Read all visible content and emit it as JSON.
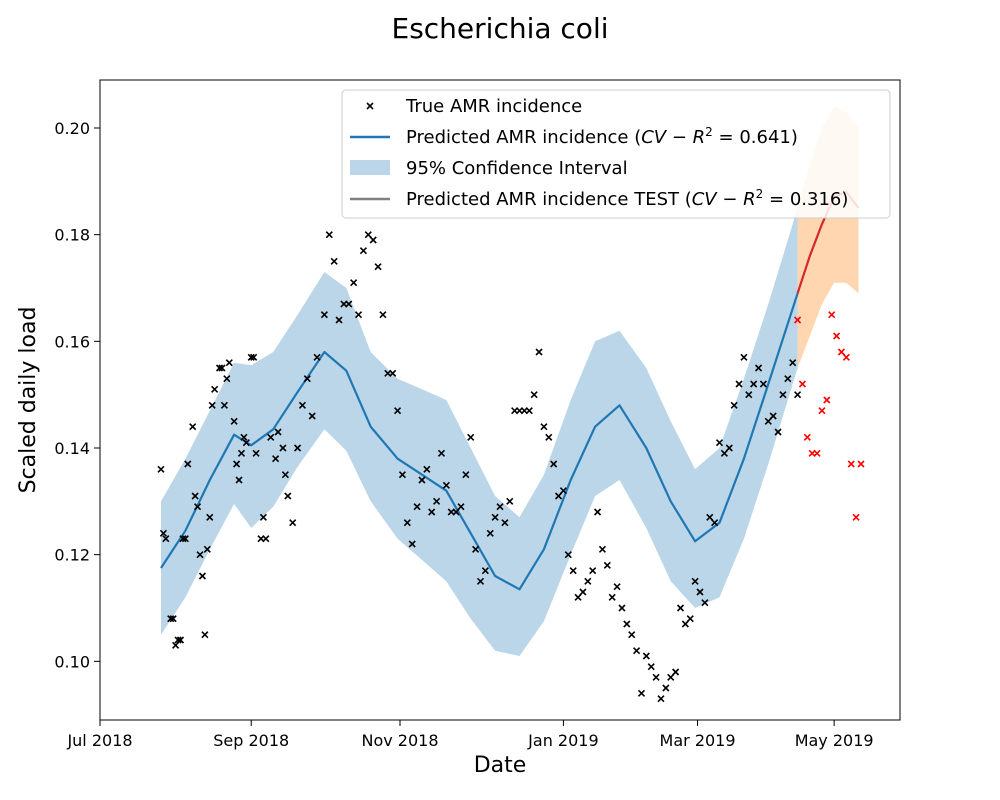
{
  "chart_data": {
    "type": "scatter",
    "title": "Escherichia coli",
    "xlabel": "Date",
    "ylabel": "Scaled daily load",
    "xlim": [
      "2018-07-01",
      "2019-05-25"
    ],
    "ylim": [
      0.089,
      0.209
    ],
    "x_ticks": [
      {
        "date": "2018-07-01",
        "label": "Jul 2018"
      },
      {
        "date": "2018-09-01",
        "label": "Sep 2018"
      },
      {
        "date": "2018-11-01",
        "label": "Nov 2018"
      },
      {
        "date": "2019-01-07",
        "label": "Jan 2019"
      },
      {
        "date": "2019-03-03",
        "label": "Mar 2019"
      },
      {
        "date": "2019-04-28",
        "label": "May 2019"
      }
    ],
    "y_ticks": [
      {
        "value": 0.1,
        "label": "0.10"
      },
      {
        "value": 0.12,
        "label": "0.12"
      },
      {
        "value": 0.14,
        "label": "0.14"
      },
      {
        "value": 0.16,
        "label": "0.16"
      },
      {
        "value": 0.18,
        "label": "0.18"
      },
      {
        "value": 0.2,
        "label": "0.20"
      }
    ],
    "grid": false,
    "legend_position": "upper-right",
    "colors": {
      "true_points": "#000000",
      "test_points": "#ff0000",
      "predicted_line": "#1f77b4",
      "ci_fill": "#1f77b4",
      "test_line": "#d62728",
      "test_ci_fill": "#ffa54d",
      "legend_test_line": "#808080"
    },
    "legend": [
      {
        "key": "true",
        "text": "True AMR incidence",
        "marker": "x"
      },
      {
        "key": "pred",
        "text": "Predicted AMR incidence (",
        "math": "CV − R",
        "sup": "2",
        "tail": " = 0.641)",
        "marker": "line"
      },
      {
        "key": "ci",
        "text": "95% Confidence Interval",
        "marker": "patch"
      },
      {
        "key": "test",
        "text": "Predicted AMR incidence TEST (",
        "math": "CV − R",
        "sup": "2",
        "tail": " = 0.316)",
        "marker": "line-gray"
      }
    ],
    "series": [
      {
        "name": "True AMR incidence",
        "kind": "scatter",
        "x": [
          "2018-07-26",
          "2018-07-27",
          "2018-07-28",
          "2018-07-30",
          "2018-07-31",
          "2018-08-01",
          "2018-08-02",
          "2018-08-03",
          "2018-08-04",
          "2018-08-05",
          "2018-08-06",
          "2018-08-08",
          "2018-08-09",
          "2018-08-10",
          "2018-08-11",
          "2018-08-12",
          "2018-08-13",
          "2018-08-14",
          "2018-08-15",
          "2018-08-16",
          "2018-08-17",
          "2018-08-19",
          "2018-08-20",
          "2018-08-21",
          "2018-08-22",
          "2018-08-23",
          "2018-08-25",
          "2018-08-26",
          "2018-08-27",
          "2018-08-28",
          "2018-08-29",
          "2018-08-30",
          "2018-09-01",
          "2018-09-02",
          "2018-09-03",
          "2018-09-05",
          "2018-09-06",
          "2018-09-07",
          "2018-09-09",
          "2018-09-11",
          "2018-09-12",
          "2018-09-14",
          "2018-09-15",
          "2018-09-16",
          "2018-09-18",
          "2018-09-20",
          "2018-09-22",
          "2018-09-24",
          "2018-09-26",
          "2018-09-28",
          "2018-10-01",
          "2018-10-03",
          "2018-10-05",
          "2018-10-07",
          "2018-10-09",
          "2018-10-11",
          "2018-10-13",
          "2018-10-15",
          "2018-10-17",
          "2018-10-19",
          "2018-10-21",
          "2018-10-23",
          "2018-10-25",
          "2018-10-27",
          "2018-10-29",
          "2018-10-31",
          "2018-11-02",
          "2018-11-04",
          "2018-11-06",
          "2018-11-08",
          "2018-11-10",
          "2018-11-12",
          "2018-11-14",
          "2018-11-16",
          "2018-11-18",
          "2018-11-20",
          "2018-11-22",
          "2018-11-24",
          "2018-11-26",
          "2018-11-28",
          "2018-11-30",
          "2018-12-02",
          "2018-12-04",
          "2018-12-06",
          "2018-12-08",
          "2018-12-10",
          "2018-12-12",
          "2018-12-14",
          "2018-12-16",
          "2018-12-18",
          "2018-12-20",
          "2018-12-22",
          "2018-12-24",
          "2018-12-26",
          "2018-12-28",
          "2018-12-30",
          "2019-01-01",
          "2019-01-03",
          "2019-01-05",
          "2019-01-07",
          "2019-01-09",
          "2019-01-11",
          "2019-01-13",
          "2019-01-15",
          "2019-01-17",
          "2019-01-19",
          "2019-01-21",
          "2019-01-23",
          "2019-01-25",
          "2019-01-27",
          "2019-01-29",
          "2019-01-31",
          "2019-02-02",
          "2019-02-04",
          "2019-02-06",
          "2019-02-08",
          "2019-02-10",
          "2019-02-12",
          "2019-02-14",
          "2019-02-16",
          "2019-02-18",
          "2019-02-20",
          "2019-02-22",
          "2019-02-24",
          "2019-02-26",
          "2019-02-28",
          "2019-03-02",
          "2019-03-04",
          "2019-03-06",
          "2019-03-08",
          "2019-03-10",
          "2019-03-12",
          "2019-03-14",
          "2019-03-16",
          "2019-03-18",
          "2019-03-20",
          "2019-03-22",
          "2019-03-24",
          "2019-03-26",
          "2019-03-28",
          "2019-03-30",
          "2019-04-01",
          "2019-04-03",
          "2019-04-05",
          "2019-04-07",
          "2019-04-09",
          "2019-04-11",
          "2019-04-13"
        ],
        "y": [
          0.136,
          0.124,
          0.123,
          0.108,
          0.108,
          0.103,
          0.104,
          0.104,
          0.123,
          0.123,
          0.137,
          0.144,
          0.131,
          0.129,
          0.12,
          0.116,
          0.105,
          0.121,
          0.127,
          0.148,
          0.151,
          0.155,
          0.155,
          0.148,
          0.153,
          0.156,
          0.145,
          0.137,
          0.134,
          0.139,
          0.142,
          0.141,
          0.157,
          0.157,
          0.139,
          0.123,
          0.127,
          0.123,
          0.142,
          0.138,
          0.143,
          0.14,
          0.135,
          0.131,
          0.126,
          0.14,
          0.148,
          0.153,
          0.146,
          0.157,
          0.165,
          0.18,
          0.175,
          0.164,
          0.167,
          0.167,
          0.171,
          0.165,
          0.177,
          0.18,
          0.179,
          0.174,
          0.165,
          0.154,
          0.154,
          0.147,
          0.135,
          0.126,
          0.122,
          0.129,
          0.134,
          0.136,
          0.128,
          0.13,
          0.139,
          0.133,
          0.128,
          0.128,
          0.129,
          0.135,
          0.142,
          0.121,
          0.115,
          0.117,
          0.124,
          0.127,
          0.129,
          0.126,
          0.13,
          0.147,
          0.147,
          0.147,
          0.147,
          0.15,
          0.158,
          0.144,
          0.142,
          0.137,
          0.131,
          0.132,
          0.12,
          0.117,
          0.112,
          0.113,
          0.115,
          0.117,
          0.128,
          0.121,
          0.118,
          0.112,
          0.114,
          0.11,
          0.107,
          0.105,
          0.102,
          0.094,
          0.101,
          0.099,
          0.097,
          0.093,
          0.095,
          0.097,
          0.098,
          0.11,
          0.107,
          0.108,
          0.115,
          0.113,
          0.111,
          0.127,
          0.126,
          0.141,
          0.139,
          0.14,
          0.148,
          0.152,
          0.157,
          0.15,
          0.152,
          0.155,
          0.152,
          0.145,
          0.146,
          0.143,
          0.15,
          0.153,
          0.156,
          0.15
        ],
        "note_extra": "additional points continue through Apr 2019"
      },
      {
        "name": "Predicted AMR incidence (CV − R² = 0.641)",
        "kind": "line",
        "x": [
          "2018-07-26",
          "2018-08-05",
          "2018-08-15",
          "2018-08-25",
          "2018-09-01",
          "2018-09-10",
          "2018-09-20",
          "2018-10-01",
          "2018-10-10",
          "2018-10-20",
          "2018-10-31",
          "2018-11-10",
          "2018-11-20",
          "2018-11-30",
          "2018-12-10",
          "2018-12-20",
          "2018-12-30",
          "2019-01-10",
          "2019-01-20",
          "2019-01-30",
          "2019-02-10",
          "2019-02-20",
          "2019-03-02",
          "2019-03-12",
          "2019-03-22",
          "2019-04-01",
          "2019-04-13"
        ],
        "y": [
          0.1175,
          0.1245,
          0.134,
          0.1425,
          0.1405,
          0.1435,
          0.1505,
          0.158,
          0.1545,
          0.144,
          0.138,
          0.135,
          0.132,
          0.124,
          0.116,
          0.1135,
          0.121,
          0.134,
          0.144,
          0.148,
          0.14,
          0.13,
          0.1225,
          0.126,
          0.138,
          0.152,
          0.169
        ]
      },
      {
        "name": "95% Confidence Interval",
        "kind": "band",
        "x": [
          "2018-07-26",
          "2018-08-05",
          "2018-08-15",
          "2018-08-25",
          "2018-09-01",
          "2018-09-10",
          "2018-09-20",
          "2018-10-01",
          "2018-10-10",
          "2018-10-20",
          "2018-10-31",
          "2018-11-10",
          "2018-11-20",
          "2018-11-30",
          "2018-12-10",
          "2018-12-20",
          "2018-12-30",
          "2019-01-10",
          "2019-01-20",
          "2019-01-30",
          "2019-02-10",
          "2019-02-20",
          "2019-03-02",
          "2019-03-12",
          "2019-03-22",
          "2019-04-01",
          "2019-04-13"
        ],
        "lower": [
          0.105,
          0.112,
          0.121,
          0.1295,
          0.125,
          0.129,
          0.1365,
          0.1435,
          0.1395,
          0.13,
          0.123,
          0.119,
          0.115,
          0.108,
          0.102,
          0.101,
          0.1075,
          0.12,
          0.131,
          0.134,
          0.125,
          0.115,
          0.11,
          0.112,
          0.123,
          0.137,
          0.155
        ],
        "upper": [
          0.13,
          0.138,
          0.147,
          0.156,
          0.1555,
          0.158,
          0.165,
          0.173,
          0.17,
          0.158,
          0.153,
          0.151,
          0.149,
          0.14,
          0.131,
          0.127,
          0.135,
          0.149,
          0.16,
          0.162,
          0.155,
          0.145,
          0.136,
          0.14,
          0.153,
          0.167,
          0.185
        ]
      },
      {
        "name": "Predicted AMR incidence TEST (CV − R² = 0.316)",
        "kind": "line",
        "x": [
          "2019-04-13",
          "2019-04-18",
          "2019-04-23",
          "2019-04-28",
          "2019-05-03",
          "2019-05-08"
        ],
        "y": [
          0.169,
          0.176,
          0.182,
          0.187,
          0.188,
          0.185
        ],
        "lower": [
          0.155,
          0.161,
          0.167,
          0.171,
          0.171,
          0.169
        ],
        "upper": [
          0.185,
          0.193,
          0.2,
          0.204,
          0.203,
          0.2
        ]
      },
      {
        "name": "Test observations",
        "kind": "scatter",
        "x": [
          "2019-04-13",
          "2019-04-15",
          "2019-04-17",
          "2019-04-19",
          "2019-04-21",
          "2019-04-23",
          "2019-04-25",
          "2019-04-27",
          "2019-04-29",
          "2019-05-01",
          "2019-05-03",
          "2019-05-05",
          "2019-05-07",
          "2019-05-09"
        ],
        "y": [
          0.164,
          0.152,
          0.142,
          0.139,
          0.139,
          0.147,
          0.149,
          0.165,
          0.161,
          0.158,
          0.157,
          0.137,
          0.127,
          0.137
        ]
      }
    ]
  }
}
